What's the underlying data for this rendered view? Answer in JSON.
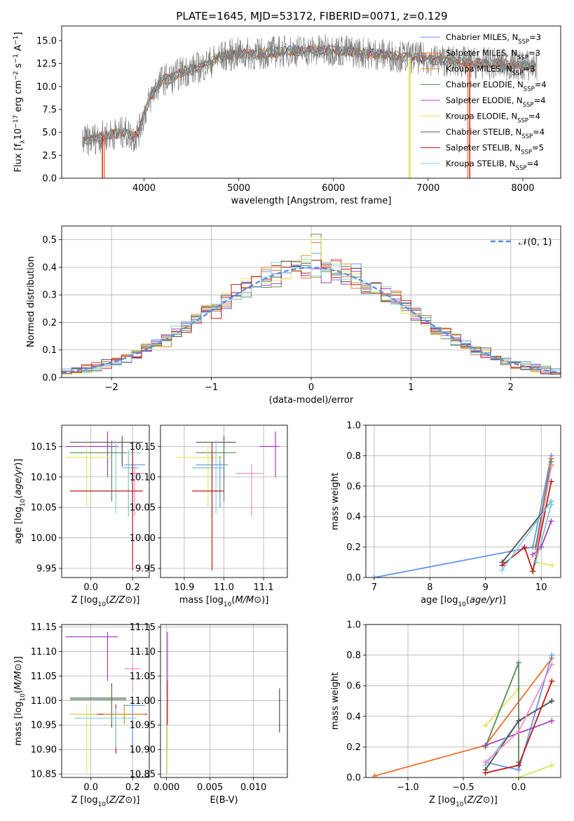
{
  "figure_title": "PLATE=1645, MJD=53172, FIBERID=0071, z=0.129",
  "colors": {
    "Chabrier MILES": "#6495ed",
    "Salpeter MILES": "#f07030",
    "Kroupa MILES": "#d4962a",
    "Chabrier ELODIE": "#5a8a5a",
    "Salpeter ELODIE": "#a040c0",
    "Kroupa ELODIE": "#e6e660",
    "Chabrier STELIB": "#505050",
    "Salpeter STELIB": "#c01818",
    "Kroupa STELIB": "#80d0e0",
    "teal": "#70c8c8",
    "pink": "#f090c0",
    "lime": "#c0f060",
    "gaussian": "#5b8ee0"
  },
  "chart_data": [
    {
      "id": "spectrum",
      "type": "line",
      "title": "PLATE=1645, MJD=53172, FIBERID=0071, z=0.129",
      "xlabel": "wavelength [Angstrom, rest frame]",
      "ylabel": "Flux [f_λ 10^-17 erg cm^-2 s^-1 A^-1]",
      "xlim": [
        3130,
        8400
      ],
      "ylim": [
        0,
        16.6
      ],
      "xticks": [
        4000,
        5000,
        6000,
        7000,
        8000
      ],
      "yticks": [
        0.0,
        2.5,
        5.0,
        7.5,
        10.0,
        12.5,
        15.0
      ],
      "grid": false,
      "legend_position": "top-right",
      "legend": [
        {
          "text": "Chabrier MILES, N_SSP=3",
          "base": "Chabrier MILES, N",
          "sub": "SSP",
          "tail": "=3",
          "color": "#6495ed"
        },
        {
          "text": "Salpeter MILES, N_SSP=3",
          "base": "Salpeter MILES, N",
          "sub": "SSP",
          "tail": "=3",
          "color": "#f07030"
        },
        {
          "text": "Kroupa MILES, N_SSP=3",
          "base": "Kroupa MILES, N",
          "sub": "SSP",
          "tail": "=3",
          "color": "#d4962a"
        },
        {
          "text": "Chabrier ELODIE, N_SSP=4",
          "base": "Chabrier ELODIE, N",
          "sub": "SSP",
          "tail": "=4",
          "color": "#5a8a5a"
        },
        {
          "text": "Salpeter ELODIE, N_SSP=4",
          "base": "Salpeter ELODIE, N",
          "sub": "SSP",
          "tail": "=4",
          "color": "#a040c0"
        },
        {
          "text": "Kroupa ELODIE, N_SSP=4",
          "base": "Kroupa ELODIE, N",
          "sub": "SSP",
          "tail": "=4",
          "color": "#e6e660"
        },
        {
          "text": "Chabrier STELIB, N_SSP=4",
          "base": "Chabrier STELIB, N",
          "sub": "SSP",
          "tail": "=4",
          "color": "#505050"
        },
        {
          "text": "Salpeter STELIB, N_SSP=5",
          "base": "Salpeter STELIB, N",
          "sub": "SSP",
          "tail": "=5",
          "color": "#c01818"
        },
        {
          "text": "Kroupa STELIB, N_SSP=4",
          "base": "Kroupa STELIB, N",
          "sub": "SSP",
          "tail": "=4",
          "color": "#80d0e0"
        }
      ],
      "spectrum_nodes": {
        "wavelength": [
          3350,
          3500,
          3650,
          3800,
          3900,
          3950,
          4000,
          4100,
          4200,
          4300,
          4400,
          4600,
          4800,
          5000,
          5200,
          5400,
          5600,
          5800,
          6000,
          6200,
          6400,
          6600,
          6800,
          7000,
          7200,
          7400,
          7600,
          7800,
          8000,
          8150
        ],
        "flux": [
          4.0,
          4.4,
          4.8,
          5.0,
          4.5,
          5.2,
          7.0,
          9.5,
          10.8,
          10.9,
          11.6,
          12.1,
          13.2,
          13.6,
          13.5,
          13.8,
          13.9,
          13.9,
          14.0,
          13.8,
          13.6,
          13.4,
          13.2,
          13.0,
          12.8,
          12.6,
          12.5,
          12.4,
          12.3,
          12.2
        ]
      },
      "dropouts": [
        {
          "wavelength": 3560,
          "flux": 0.0
        },
        {
          "wavelength": 3580,
          "flux": 0.0
        },
        {
          "wavelength": 6800,
          "flux": 0.0
        },
        {
          "wavelength": 6810,
          "flux": 0.0
        },
        {
          "wavelength": 7420,
          "flux": 0.0
        },
        {
          "wavelength": 7440,
          "flux": 0.0
        }
      ]
    },
    {
      "id": "residuals",
      "type": "step",
      "xlabel": "(data-model)/error",
      "ylabel": "Normed distribution",
      "xlim": [
        -2.5,
        2.5
      ],
      "ylim": [
        0,
        0.55
      ],
      "xticks": [
        -2,
        -1,
        0,
        1,
        2
      ],
      "yticks": [
        0.0,
        0.1,
        0.2,
        0.3,
        0.4,
        0.5
      ],
      "grid": true,
      "legend_position": "top-right",
      "legend": [
        {
          "text": "𝒩(0, 1)",
          "color": "#5b8ee0",
          "style": "dashed"
        }
      ],
      "bin_width": 0.1,
      "bins_start": -2.5,
      "series_names": [
        "Chabrier MILES",
        "Salpeter MILES",
        "Kroupa MILES",
        "Chabrier ELODIE",
        "Salpeter ELODIE",
        "Kroupa ELODIE",
        "Chabrier STELIB",
        "Salpeter STELIB",
        "Kroupa STELIB"
      ],
      "peak_values": {
        "Chabrier ELODIE": 0.52,
        "Kroupa ELODIE": 0.51,
        "Salpeter MILES": 0.49
      }
    },
    {
      "id": "age_vs_Z",
      "type": "errorbar",
      "xlabel": "Z [log10(Z/Z⊙)]",
      "ylabel": "age  [log10(age/yr)]",
      "xlim": [
        -0.14,
        0.28
      ],
      "ylim": [
        9.935,
        10.185
      ],
      "xticks": [
        0.0,
        0.2
      ],
      "yticks": [
        9.95,
        10.0,
        10.05,
        10.1,
        10.15
      ],
      "grid": true,
      "points": [
        {
          "series": "Salpeter ELODIE",
          "x": 0.08,
          "y": 10.15,
          "xerr": [
            0.2,
            0.05
          ],
          "yerr": [
            0.05,
            0.025
          ]
        },
        {
          "series": "Chabrier STELIB",
          "x": 0.15,
          "y": 10.157,
          "xerr": [
            0.25,
            0.1
          ],
          "yerr": [
            0.04,
            0.01
          ]
        },
        {
          "series": "Kroupa STELIB",
          "x": 0.12,
          "y": 10.14,
          "xerr": [
            0.2,
            0.12
          ],
          "yerr": [
            0.1,
            0.02
          ]
        },
        {
          "series": "Chabrier ELODIE",
          "x": 0.1,
          "y": 10.14,
          "xerr": [
            0.2,
            0.07
          ],
          "yerr": [
            0.08,
            0.02
          ]
        },
        {
          "series": "Kroupa ELODIE",
          "x": -0.02,
          "y": 10.132,
          "xerr": [
            0.1,
            0.12
          ],
          "yerr": [
            0.08,
            0.02
          ]
        },
        {
          "series": "Chabrier MILES",
          "x": 0.2,
          "y": 10.12,
          "xerr": [
            0.04,
            0.06
          ],
          "yerr": [
            0.07,
            0.015
          ]
        },
        {
          "series": "teal",
          "x": 0.18,
          "y": 10.115,
          "xerr": [
            0.03,
            0.05
          ],
          "yerr": [
            0.08,
            0.03
          ]
        },
        {
          "series": "pink",
          "x": 0.21,
          "y": 10.106,
          "xerr": [
            0.03,
            0.05
          ],
          "yerr": [
            0.07,
            0.015
          ]
        },
        {
          "series": "Salpeter STELIB",
          "x": 0.2,
          "y": 10.077,
          "xerr": [
            0.3,
            0.05
          ],
          "yerr": [
            0.13,
            0.08
          ]
        }
      ]
    },
    {
      "id": "age_vs_mass",
      "type": "errorbar",
      "xlabel": "mass [log10(M/M⊙)]",
      "ylabel": "",
      "xlim": [
        10.84,
        11.16
      ],
      "ylim": [
        9.935,
        10.185
      ],
      "xticks": [
        10.9,
        11.0,
        11.1
      ],
      "yticks": [
        9.95,
        10.0,
        10.05,
        10.1,
        10.15
      ],
      "grid": true,
      "points": [
        {
          "series": "Salpeter ELODIE",
          "x": 11.13,
          "y": 10.15,
          "xerr": [
            0.04,
            0.01
          ],
          "yerr": [
            0.05,
            0.025
          ]
        },
        {
          "series": "Chabrier STELIB",
          "x": 11.0,
          "y": 10.157,
          "xerr": [
            0.07,
            0.03
          ],
          "yerr": [
            0.06,
            0.01
          ]
        },
        {
          "series": "Kroupa STELIB",
          "x": 10.98,
          "y": 10.14,
          "xerr": [
            0.05,
            0.03
          ],
          "yerr": [
            0.1,
            0.02
          ]
        },
        {
          "series": "Chabrier ELODIE",
          "x": 11.0,
          "y": 10.14,
          "xerr": [
            0.07,
            0.03
          ],
          "yerr": [
            0.08,
            0.02
          ]
        },
        {
          "series": "Kroupa ELODIE",
          "x": 10.96,
          "y": 10.132,
          "xerr": [
            0.08,
            0.04
          ],
          "yerr": [
            0.08,
            0.02
          ]
        },
        {
          "series": "Chabrier MILES",
          "x": 10.99,
          "y": 10.12,
          "xerr": [
            0.06,
            0.02
          ],
          "yerr": [
            0.07,
            0.015
          ]
        },
        {
          "series": "teal",
          "x": 10.97,
          "y": 10.115,
          "xerr": [
            0.05,
            0.03
          ],
          "yerr": [
            0.08,
            0.03
          ]
        },
        {
          "series": "pink",
          "x": 11.07,
          "y": 10.106,
          "xerr": [
            0.04,
            0.03
          ],
          "yerr": [
            0.07,
            0.015
          ]
        },
        {
          "series": "Salpeter STELIB",
          "x": 10.97,
          "y": 10.077,
          "xerr": [
            0.05,
            0.03
          ],
          "yerr": [
            0.13,
            0.08
          ]
        }
      ]
    },
    {
      "id": "mass_weight_vs_age",
      "type": "line",
      "xlabel": "age  [log10(age/yr)]",
      "ylabel": "mass weight",
      "xlim": [
        6.85,
        10.35
      ],
      "ylim": [
        0,
        1.0
      ],
      "xticks": [
        7,
        8,
        9,
        10
      ],
      "yticks": [
        0.0,
        0.2,
        0.4,
        0.6,
        0.8,
        1.0
      ],
      "grid": true,
      "series": [
        {
          "name": "Chabrier MILES",
          "x": [
            7.0,
            9.85,
            10.18
          ],
          "y": [
            0.0,
            0.2,
            0.8
          ]
        },
        {
          "name": "Salpeter MILES",
          "x": [
            9.9,
            10.18
          ],
          "y": [
            0.2,
            0.78
          ]
        },
        {
          "name": "Kroupa MILES",
          "x": [
            9.9,
            10.18
          ],
          "y": [
            0.2,
            0.74
          ]
        },
        {
          "name": "Chabrier ELODIE",
          "x": [
            9.9,
            10.18
          ],
          "y": [
            0.2,
            0.76
          ]
        },
        {
          "name": "Salpeter ELODIE",
          "x": [
            9.85,
            10.0,
            10.18
          ],
          "y": [
            0.15,
            0.2,
            0.37
          ]
        },
        {
          "name": "Kroupa ELODIE",
          "x": [
            9.9,
            10.2
          ],
          "y": [
            0.1,
            0.08
          ]
        },
        {
          "name": "Chabrier STELIB",
          "x": [
            9.3,
            10.18
          ],
          "y": [
            0.1,
            0.5
          ]
        },
        {
          "name": "Salpeter STELIB",
          "x": [
            9.3,
            9.7,
            9.85,
            10.18
          ],
          "y": [
            0.08,
            0.2,
            0.04,
            0.63
          ]
        },
        {
          "name": "Kroupa STELIB",
          "x": [
            9.3,
            10.18
          ],
          "y": [
            0.05,
            0.5
          ]
        },
        {
          "name": "teal",
          "x": [
            9.9,
            10.18
          ],
          "y": [
            0.1,
            0.48
          ]
        },
        {
          "name": "pink",
          "x": [
            9.9,
            10.18
          ],
          "y": [
            0.15,
            0.73
          ]
        }
      ]
    },
    {
      "id": "mass_vs_Z",
      "type": "errorbar",
      "xlabel": "Z [log10(Z/Z⊙)]",
      "ylabel": "mass [log10(M/M⊙)]",
      "xlim": [
        -0.14,
        0.28
      ],
      "ylim": [
        10.843,
        11.155
      ],
      "xticks": [
        0.0,
        0.2
      ],
      "yticks": [
        10.85,
        10.9,
        10.95,
        11.0,
        11.05,
        11.1,
        11.15
      ],
      "grid": true,
      "points": [
        {
          "series": "Salpeter ELODIE",
          "x": 0.08,
          "y": 11.13,
          "xerr": [
            0.2,
            0.05
          ],
          "yerr": [
            0.09,
            0.01
          ]
        },
        {
          "series": "pink",
          "x": 0.2,
          "y": 11.065,
          "xerr": [
            0.04,
            0.04
          ],
          "yerr": [
            0.05,
            0.01
          ]
        },
        {
          "series": "Chabrier STELIB",
          "x": 0.1,
          "y": 11.005,
          "xerr": [
            0.2,
            0.07
          ],
          "yerr": [
            0.06,
            0.03
          ]
        },
        {
          "series": "Chabrier ELODIE",
          "x": 0.1,
          "y": 11.002,
          "xerr": [
            0.2,
            0.07
          ],
          "yerr": [
            0.05,
            0.03
          ]
        },
        {
          "series": "Chabrier MILES",
          "x": 0.2,
          "y": 10.99,
          "xerr": [
            0.04,
            0.06
          ],
          "yerr": [
            0.1,
            0.01
          ]
        },
        {
          "series": "Salpeter STELIB",
          "x": 0.12,
          "y": 10.972,
          "xerr": [
            0.22,
            0.15
          ],
          "yerr": [
            0.08,
            0.02
          ]
        },
        {
          "series": "Kroupa ELODIE",
          "x": -0.02,
          "y": 10.972,
          "xerr": [
            0.08,
            0.05
          ],
          "yerr": [
            0.12,
            0.02
          ]
        },
        {
          "series": "Kroupa STELIB",
          "x": 0.12,
          "y": 10.964,
          "xerr": [
            0.2,
            0.1
          ],
          "yerr": [
            0.06,
            0.02
          ]
        },
        {
          "series": "Kroupa MILES",
          "x": 0.16,
          "y": 10.972,
          "xerr": [
            0.1,
            0.1
          ],
          "yerr": [
            0.02,
            0.02
          ]
        }
      ]
    },
    {
      "id": "mass_vs_ebv",
      "type": "errorbar",
      "xlabel": "E(B-V)",
      "ylabel": "",
      "xlim": [
        -0.0007,
        0.0139
      ],
      "ylim": [
        10.843,
        11.155
      ],
      "xticks": [
        0.0,
        0.005,
        0.01
      ],
      "xticklabels": [
        "0.000",
        "0.005",
        "0.010"
      ],
      "yticks": [
        10.85,
        10.9,
        10.95,
        11.0,
        11.05,
        11.1,
        11.15
      ],
      "grid": true,
      "points": [
        {
          "series": "Salpeter ELODIE",
          "x": 0.0001,
          "y": 11.0,
          "xerr": [
            0,
            0
          ],
          "yerr": [
            0.1,
            0.14
          ]
        },
        {
          "series": "Salpeter STELIB",
          "x": 0.0001,
          "y": 11.0,
          "xerr": [
            0,
            0
          ],
          "yerr": [
            0.05,
            0.04
          ]
        },
        {
          "series": "Kroupa ELODIE",
          "x": 0.0001,
          "y": 10.9,
          "xerr": [
            0,
            0
          ],
          "yerr": [
            0.05,
            0.05
          ]
        },
        {
          "series": "Chabrier STELIB",
          "x": 0.013,
          "y": 10.975,
          "xerr": [
            0,
            0
          ],
          "yerr": [
            0.04,
            0.05
          ]
        }
      ]
    },
    {
      "id": "mass_weight_vs_Z",
      "type": "line",
      "xlabel": "Z [log10(Z/Z⊙)]",
      "ylabel": "mass weight",
      "xlim": [
        -1.38,
        0.38
      ],
      "ylim": [
        0,
        1.0
      ],
      "xticks": [
        -1.0,
        -0.5,
        0.0
      ],
      "xticklabels": [
        "−1.0",
        "−0.5",
        "0.0"
      ],
      "yticks": [
        0.0,
        0.2,
        0.4,
        0.6,
        0.8,
        1.0
      ],
      "grid": true,
      "series": [
        {
          "name": "Salpeter MILES",
          "x": [
            -1.3,
            -0.3,
            0.3
          ],
          "y": [
            0.01,
            0.21,
            0.78
          ]
        },
        {
          "name": "Chabrier MILES",
          "x": [
            -0.3,
            0.0,
            0.3
          ],
          "y": [
            0.1,
            0.05,
            0.8
          ]
        },
        {
          "name": "Kroupa ELODIE",
          "x": [
            -0.3,
            0.0
          ],
          "y": [
            0.34,
            0.58
          ]
        },
        {
          "name": "Chabrier ELODIE",
          "x": [
            -0.3,
            0.0,
            0.0
          ],
          "y": [
            0.2,
            0.75,
            0.1
          ]
        },
        {
          "name": "Salpeter ELODIE",
          "x": [
            -0.3,
            0.3
          ],
          "y": [
            0.21,
            0.37
          ]
        },
        {
          "name": "Kroupa STELIB",
          "x": [
            -0.3,
            0.0,
            0.3
          ],
          "y": [
            0.08,
            0.37,
            0.5
          ]
        },
        {
          "name": "Chabrier STELIB",
          "x": [
            -0.3,
            0.0,
            0.3
          ],
          "y": [
            0.05,
            0.37,
            0.5
          ]
        },
        {
          "name": "Salpeter STELIB",
          "x": [
            -0.3,
            0.0,
            0.3
          ],
          "y": [
            0.03,
            0.08,
            0.63
          ]
        },
        {
          "name": "pink",
          "x": [
            -0.3,
            0.0,
            0.3
          ],
          "y": [
            0.1,
            0.3,
            0.74
          ]
        },
        {
          "name": "lime",
          "x": [
            0.0,
            0.3
          ],
          "y": [
            0.0,
            0.08
          ]
        }
      ]
    }
  ]
}
